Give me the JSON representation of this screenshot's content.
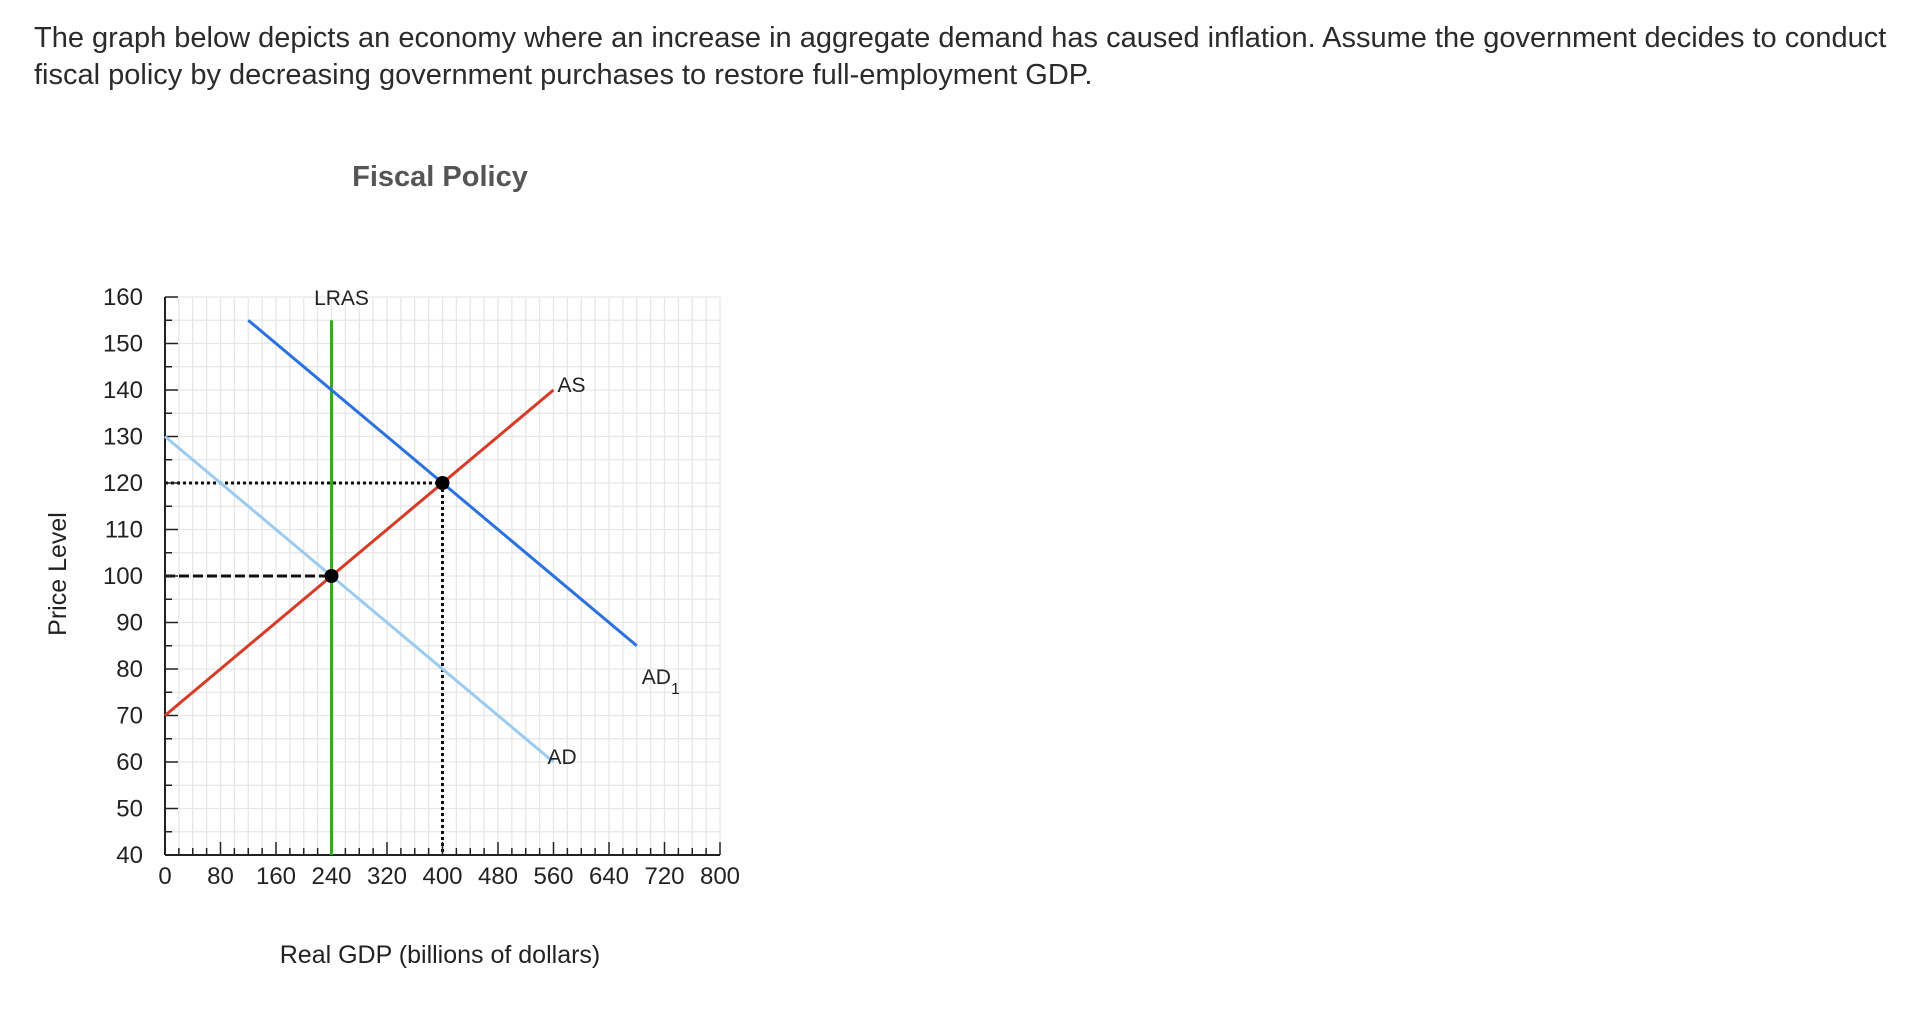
{
  "question": {
    "text": "The graph below depicts an economy where an increase in aggregate demand has caused inflation. Assume the government decides to conduct fiscal policy by decreasing government purchases to restore full-employment GDP."
  },
  "chart_data": {
    "type": "line",
    "title": "Fiscal Policy",
    "xlabel": "Real GDP (billions of dollars)",
    "ylabel": "Price Level",
    "xlim": [
      0,
      800
    ],
    "ylim": [
      40,
      160
    ],
    "x_ticks": [
      0,
      80,
      160,
      240,
      320,
      400,
      480,
      560,
      640,
      720,
      800
    ],
    "y_ticks": [
      40,
      50,
      60,
      70,
      80,
      90,
      100,
      110,
      120,
      130,
      140,
      150,
      160
    ],
    "grid": true,
    "series": [
      {
        "name": "LRAS",
        "color": "#43a02c",
        "points": [
          [
            240,
            40
          ],
          [
            240,
            155
          ]
        ],
        "label": "LRAS"
      },
      {
        "name": "AS",
        "color": "#d93a25",
        "points": [
          [
            0,
            70
          ],
          [
            560,
            140
          ]
        ],
        "label": "AS"
      },
      {
        "name": "AD",
        "color": "#9ccbf0",
        "points": [
          [
            0,
            130
          ],
          [
            560,
            60
          ]
        ],
        "label": "AD"
      },
      {
        "name": "AD1",
        "color": "#2a72e0",
        "points": [
          [
            120,
            155
          ],
          [
            680,
            85
          ]
        ],
        "label": "AD",
        "label_sub": "1"
      }
    ],
    "equilibria": [
      {
        "x": 240,
        "y": 100
      },
      {
        "x": 400,
        "y": 120
      }
    ],
    "guides": [
      {
        "style": "dashed",
        "points": [
          [
            0,
            100
          ],
          [
            240,
            100
          ]
        ]
      },
      {
        "style": "dotted",
        "points": [
          [
            0,
            120
          ],
          [
            400,
            120
          ]
        ]
      },
      {
        "style": "dotted",
        "points": [
          [
            400,
            120
          ],
          [
            400,
            40
          ]
        ]
      }
    ]
  }
}
